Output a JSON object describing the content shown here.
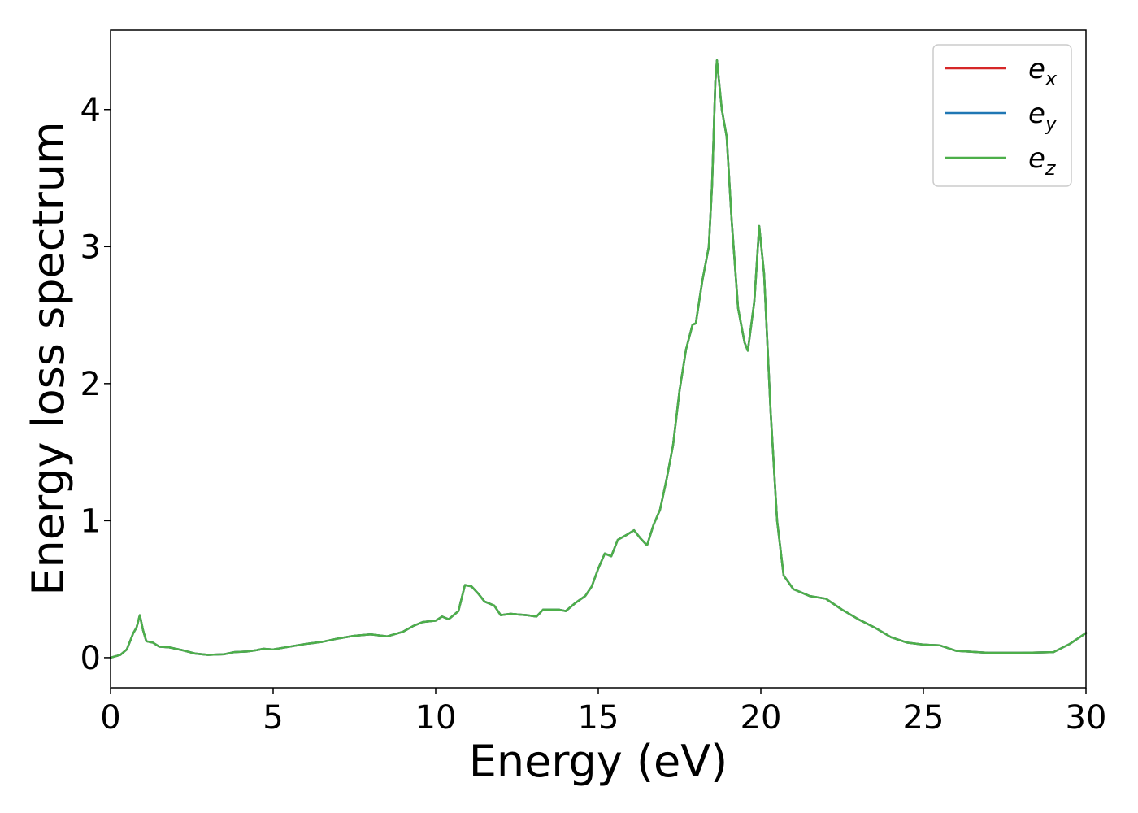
{
  "chart_data": {
    "type": "line",
    "title": "",
    "xlabel": "Energy (eV)",
    "ylabel": "Energy loss spectrum",
    "xlim": [
      0,
      30
    ],
    "ylim": [
      -0.22,
      4.58
    ],
    "xticks": [
      0,
      5,
      10,
      15,
      20,
      25,
      30
    ],
    "yticks": [
      0,
      1,
      2,
      3,
      4
    ],
    "grid": false,
    "legend_position": "top-right",
    "series": [
      {
        "name": "e_x",
        "base": "e",
        "sub": "x",
        "color": "#d62728",
        "points": [
          [
            0,
            0.0
          ],
          [
            0.3,
            0.02
          ],
          [
            0.5,
            0.06
          ],
          [
            0.6,
            0.12
          ],
          [
            0.7,
            0.18
          ],
          [
            0.8,
            0.22
          ],
          [
            0.9,
            0.31
          ],
          [
            1.0,
            0.2
          ],
          [
            1.1,
            0.12
          ],
          [
            1.3,
            0.11
          ],
          [
            1.5,
            0.08
          ],
          [
            1.8,
            0.075
          ],
          [
            2.2,
            0.055
          ],
          [
            2.6,
            0.03
          ],
          [
            3.0,
            0.02
          ],
          [
            3.5,
            0.025
          ],
          [
            3.8,
            0.04
          ],
          [
            4.2,
            0.045
          ],
          [
            4.5,
            0.055
          ],
          [
            4.7,
            0.065
          ],
          [
            5.0,
            0.06
          ],
          [
            5.5,
            0.08
          ],
          [
            6.0,
            0.1
          ],
          [
            6.5,
            0.115
          ],
          [
            7.0,
            0.14
          ],
          [
            7.5,
            0.16
          ],
          [
            8.0,
            0.17
          ],
          [
            8.5,
            0.155
          ],
          [
            9.0,
            0.19
          ],
          [
            9.3,
            0.23
          ],
          [
            9.6,
            0.26
          ],
          [
            10.0,
            0.27
          ],
          [
            10.2,
            0.3
          ],
          [
            10.4,
            0.28
          ],
          [
            10.7,
            0.34
          ],
          [
            10.9,
            0.53
          ],
          [
            11.1,
            0.52
          ],
          [
            11.3,
            0.47
          ],
          [
            11.5,
            0.41
          ],
          [
            11.8,
            0.38
          ],
          [
            12.0,
            0.31
          ],
          [
            12.3,
            0.32
          ],
          [
            12.8,
            0.31
          ],
          [
            13.1,
            0.3
          ],
          [
            13.3,
            0.35
          ],
          [
            13.8,
            0.35
          ],
          [
            14.0,
            0.34
          ],
          [
            14.3,
            0.4
          ],
          [
            14.6,
            0.45
          ],
          [
            14.8,
            0.52
          ],
          [
            15.0,
            0.65
          ],
          [
            15.2,
            0.76
          ],
          [
            15.4,
            0.74
          ],
          [
            15.6,
            0.86
          ],
          [
            15.9,
            0.9
          ],
          [
            16.1,
            0.93
          ],
          [
            16.3,
            0.87
          ],
          [
            16.5,
            0.82
          ],
          [
            16.7,
            0.97
          ],
          [
            16.9,
            1.08
          ],
          [
            17.1,
            1.3
          ],
          [
            17.3,
            1.55
          ],
          [
            17.5,
            1.95
          ],
          [
            17.7,
            2.25
          ],
          [
            17.9,
            2.43
          ],
          [
            18.0,
            2.44
          ],
          [
            18.2,
            2.75
          ],
          [
            18.4,
            3.0
          ],
          [
            18.5,
            3.45
          ],
          [
            18.6,
            4.2
          ],
          [
            18.65,
            4.36
          ],
          [
            18.8,
            4.0
          ],
          [
            18.95,
            3.8
          ],
          [
            19.1,
            3.2
          ],
          [
            19.3,
            2.55
          ],
          [
            19.5,
            2.3
          ],
          [
            19.6,
            2.24
          ],
          [
            19.8,
            2.6
          ],
          [
            19.95,
            3.15
          ],
          [
            20.1,
            2.8
          ],
          [
            20.3,
            1.8
          ],
          [
            20.5,
            1.0
          ],
          [
            20.7,
            0.6
          ],
          [
            21.0,
            0.5
          ],
          [
            21.5,
            0.45
          ],
          [
            22.0,
            0.43
          ],
          [
            22.5,
            0.35
          ],
          [
            23.0,
            0.28
          ],
          [
            23.5,
            0.22
          ],
          [
            24.0,
            0.15
          ],
          [
            24.5,
            0.11
          ],
          [
            25.0,
            0.095
          ],
          [
            25.5,
            0.09
          ],
          [
            26.0,
            0.05
          ],
          [
            27.0,
            0.035
          ],
          [
            28.0,
            0.035
          ],
          [
            29.0,
            0.04
          ],
          [
            29.5,
            0.1
          ],
          [
            30.0,
            0.18
          ]
        ]
      },
      {
        "name": "e_y",
        "base": "e",
        "sub": "y",
        "color": "#1f77b4",
        "points": [
          [
            0,
            0.0
          ],
          [
            0.3,
            0.02
          ],
          [
            0.5,
            0.06
          ],
          [
            0.6,
            0.12
          ],
          [
            0.7,
            0.18
          ],
          [
            0.8,
            0.22
          ],
          [
            0.9,
            0.31
          ],
          [
            1.0,
            0.2
          ],
          [
            1.1,
            0.12
          ],
          [
            1.3,
            0.11
          ],
          [
            1.5,
            0.08
          ],
          [
            1.8,
            0.075
          ],
          [
            2.2,
            0.055
          ],
          [
            2.6,
            0.03
          ],
          [
            3.0,
            0.02
          ],
          [
            3.5,
            0.025
          ],
          [
            3.8,
            0.04
          ],
          [
            4.2,
            0.045
          ],
          [
            4.5,
            0.055
          ],
          [
            4.7,
            0.065
          ],
          [
            5.0,
            0.06
          ],
          [
            5.5,
            0.08
          ],
          [
            6.0,
            0.1
          ],
          [
            6.5,
            0.115
          ],
          [
            7.0,
            0.14
          ],
          [
            7.5,
            0.16
          ],
          [
            8.0,
            0.17
          ],
          [
            8.5,
            0.155
          ],
          [
            9.0,
            0.19
          ],
          [
            9.3,
            0.23
          ],
          [
            9.6,
            0.26
          ],
          [
            10.0,
            0.27
          ],
          [
            10.2,
            0.3
          ],
          [
            10.4,
            0.28
          ],
          [
            10.7,
            0.34
          ],
          [
            10.9,
            0.53
          ],
          [
            11.1,
            0.52
          ],
          [
            11.3,
            0.47
          ],
          [
            11.5,
            0.41
          ],
          [
            11.8,
            0.38
          ],
          [
            12.0,
            0.31
          ],
          [
            12.3,
            0.32
          ],
          [
            12.8,
            0.31
          ],
          [
            13.1,
            0.3
          ],
          [
            13.3,
            0.35
          ],
          [
            13.8,
            0.35
          ],
          [
            14.0,
            0.34
          ],
          [
            14.3,
            0.4
          ],
          [
            14.6,
            0.45
          ],
          [
            14.8,
            0.52
          ],
          [
            15.0,
            0.65
          ],
          [
            15.2,
            0.76
          ],
          [
            15.4,
            0.74
          ],
          [
            15.6,
            0.86
          ],
          [
            15.9,
            0.9
          ],
          [
            16.1,
            0.93
          ],
          [
            16.3,
            0.87
          ],
          [
            16.5,
            0.82
          ],
          [
            16.7,
            0.97
          ],
          [
            16.9,
            1.08
          ],
          [
            17.1,
            1.3
          ],
          [
            17.3,
            1.55
          ],
          [
            17.5,
            1.95
          ],
          [
            17.7,
            2.25
          ],
          [
            17.9,
            2.43
          ],
          [
            18.0,
            2.44
          ],
          [
            18.2,
            2.75
          ],
          [
            18.4,
            3.0
          ],
          [
            18.5,
            3.45
          ],
          [
            18.6,
            4.2
          ],
          [
            18.65,
            4.36
          ],
          [
            18.8,
            4.0
          ],
          [
            18.95,
            3.8
          ],
          [
            19.1,
            3.2
          ],
          [
            19.3,
            2.55
          ],
          [
            19.5,
            2.3
          ],
          [
            19.6,
            2.24
          ],
          [
            19.8,
            2.6
          ],
          [
            19.95,
            3.15
          ],
          [
            20.1,
            2.8
          ],
          [
            20.3,
            1.8
          ],
          [
            20.5,
            1.0
          ],
          [
            20.7,
            0.6
          ],
          [
            21.0,
            0.5
          ],
          [
            21.5,
            0.45
          ],
          [
            22.0,
            0.43
          ],
          [
            22.5,
            0.35
          ],
          [
            23.0,
            0.28
          ],
          [
            23.5,
            0.22
          ],
          [
            24.0,
            0.15
          ],
          [
            24.5,
            0.11
          ],
          [
            25.0,
            0.095
          ],
          [
            25.5,
            0.09
          ],
          [
            26.0,
            0.05
          ],
          [
            27.0,
            0.035
          ],
          [
            28.0,
            0.035
          ],
          [
            29.0,
            0.04
          ],
          [
            29.5,
            0.1
          ],
          [
            30.0,
            0.18
          ]
        ]
      },
      {
        "name": "e_z",
        "base": "e",
        "sub": "z",
        "color": "#4daf4a",
        "points": [
          [
            0,
            0.0
          ],
          [
            0.3,
            0.02
          ],
          [
            0.5,
            0.06
          ],
          [
            0.6,
            0.12
          ],
          [
            0.7,
            0.18
          ],
          [
            0.8,
            0.22
          ],
          [
            0.9,
            0.31
          ],
          [
            1.0,
            0.2
          ],
          [
            1.1,
            0.12
          ],
          [
            1.3,
            0.11
          ],
          [
            1.5,
            0.08
          ],
          [
            1.8,
            0.075
          ],
          [
            2.2,
            0.055
          ],
          [
            2.6,
            0.03
          ],
          [
            3.0,
            0.02
          ],
          [
            3.5,
            0.025
          ],
          [
            3.8,
            0.04
          ],
          [
            4.2,
            0.045
          ],
          [
            4.5,
            0.055
          ],
          [
            4.7,
            0.065
          ],
          [
            5.0,
            0.06
          ],
          [
            5.5,
            0.08
          ],
          [
            6.0,
            0.1
          ],
          [
            6.5,
            0.115
          ],
          [
            7.0,
            0.14
          ],
          [
            7.5,
            0.16
          ],
          [
            8.0,
            0.17
          ],
          [
            8.5,
            0.155
          ],
          [
            9.0,
            0.19
          ],
          [
            9.3,
            0.23
          ],
          [
            9.6,
            0.26
          ],
          [
            10.0,
            0.27
          ],
          [
            10.2,
            0.3
          ],
          [
            10.4,
            0.28
          ],
          [
            10.7,
            0.34
          ],
          [
            10.9,
            0.53
          ],
          [
            11.1,
            0.52
          ],
          [
            11.3,
            0.47
          ],
          [
            11.5,
            0.41
          ],
          [
            11.8,
            0.38
          ],
          [
            12.0,
            0.31
          ],
          [
            12.3,
            0.32
          ],
          [
            12.8,
            0.31
          ],
          [
            13.1,
            0.3
          ],
          [
            13.3,
            0.35
          ],
          [
            13.8,
            0.35
          ],
          [
            14.0,
            0.34
          ],
          [
            14.3,
            0.4
          ],
          [
            14.6,
            0.45
          ],
          [
            14.8,
            0.52
          ],
          [
            15.0,
            0.65
          ],
          [
            15.2,
            0.76
          ],
          [
            15.4,
            0.74
          ],
          [
            15.6,
            0.86
          ],
          [
            15.9,
            0.9
          ],
          [
            16.1,
            0.93
          ],
          [
            16.3,
            0.87
          ],
          [
            16.5,
            0.82
          ],
          [
            16.7,
            0.97
          ],
          [
            16.9,
            1.08
          ],
          [
            17.1,
            1.3
          ],
          [
            17.3,
            1.55
          ],
          [
            17.5,
            1.95
          ],
          [
            17.7,
            2.25
          ],
          [
            17.9,
            2.43
          ],
          [
            18.0,
            2.44
          ],
          [
            18.2,
            2.75
          ],
          [
            18.4,
            3.0
          ],
          [
            18.5,
            3.45
          ],
          [
            18.6,
            4.2
          ],
          [
            18.65,
            4.36
          ],
          [
            18.8,
            4.0
          ],
          [
            18.95,
            3.8
          ],
          [
            19.1,
            3.2
          ],
          [
            19.3,
            2.55
          ],
          [
            19.5,
            2.3
          ],
          [
            19.6,
            2.24
          ],
          [
            19.8,
            2.6
          ],
          [
            19.95,
            3.15
          ],
          [
            20.1,
            2.8
          ],
          [
            20.3,
            1.8
          ],
          [
            20.5,
            1.0
          ],
          [
            20.7,
            0.6
          ],
          [
            21.0,
            0.5
          ],
          [
            21.5,
            0.45
          ],
          [
            22.0,
            0.43
          ],
          [
            22.5,
            0.35
          ],
          [
            23.0,
            0.28
          ],
          [
            23.5,
            0.22
          ],
          [
            24.0,
            0.15
          ],
          [
            24.5,
            0.11
          ],
          [
            25.0,
            0.095
          ],
          [
            25.5,
            0.09
          ],
          [
            26.0,
            0.05
          ],
          [
            27.0,
            0.035
          ],
          [
            28.0,
            0.035
          ],
          [
            29.0,
            0.04
          ],
          [
            29.5,
            0.1
          ],
          [
            30.0,
            0.18
          ]
        ]
      }
    ]
  }
}
